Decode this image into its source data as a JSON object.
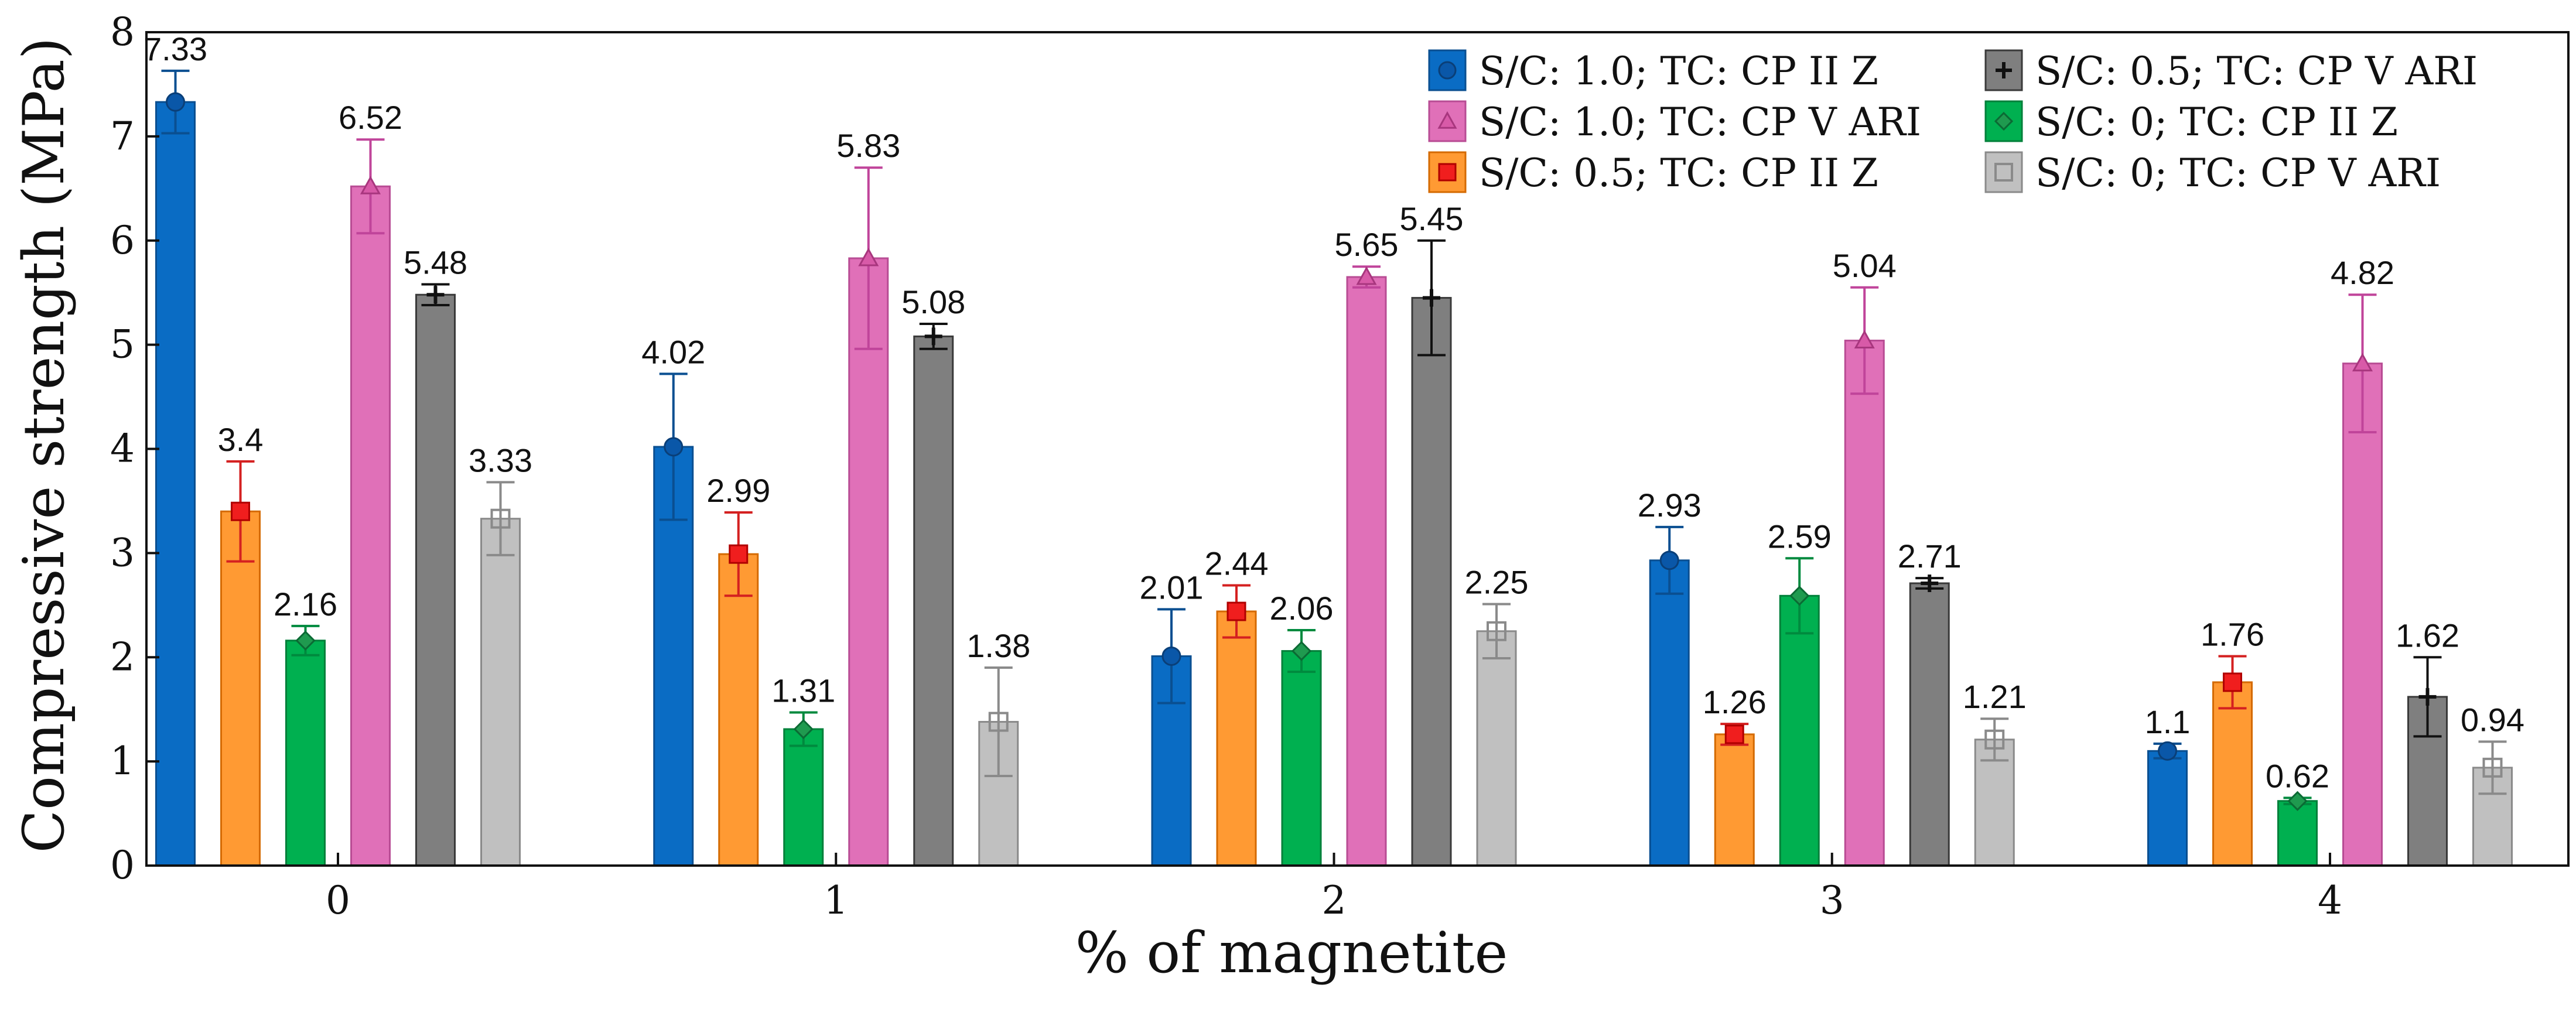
{
  "chart_data": {
    "type": "bar",
    "xlabel": "% of magnetite",
    "ylabel": "Compressive strength (MPa)",
    "ylim": [
      0,
      8
    ],
    "yticks": [
      "0",
      "1",
      "2",
      "3",
      "4",
      "5",
      "6",
      "7",
      "8"
    ],
    "categories": [
      "0",
      "1",
      "2",
      "3",
      "4"
    ],
    "legend_position": "top-right",
    "grid": false,
    "series": [
      {
        "name": "S/C: 1.0; TC: CP II Z",
        "fill": "#0a6cc4",
        "stroke": "#0a4f91",
        "error_color": "#0a4f91",
        "marker": "circle",
        "marker_color": "#0a57a8",
        "marker_stroke": "#0a3f78",
        "values": [
          7.33,
          4.02,
          2.01,
          2.93,
          1.1
        ],
        "labels": [
          "7.33",
          "4.02",
          "2.01",
          "2.93",
          "1.1"
        ],
        "errors": [
          0.3,
          0.7,
          0.45,
          0.32,
          0.07
        ]
      },
      {
        "name": "S/C: 0.5; TC: CP II Z",
        "fill": "#ff9a33",
        "stroke": "#d46a00",
        "error_color": "#d42020",
        "marker": "square",
        "marker_color": "#f01e1e",
        "marker_stroke": "#b00000",
        "values": [
          3.4,
          2.99,
          2.44,
          1.26,
          1.76
        ],
        "labels": [
          "3.4",
          "2.99",
          "2.44",
          "1.26",
          "1.76"
        ],
        "errors": [
          0.48,
          0.4,
          0.25,
          0.1,
          0.25
        ]
      },
      {
        "name": "S/C: 0; TC: CP II Z",
        "fill": "#00b050",
        "stroke": "#00803a",
        "error_color": "#008a3e",
        "marker": "diamond",
        "marker_color": "#1f9a4f",
        "marker_stroke": "#0b6a34",
        "values": [
          2.16,
          1.31,
          2.06,
          2.59,
          0.62
        ],
        "labels": [
          "2.16",
          "1.31",
          "2.06",
          "2.59",
          "0.62"
        ],
        "errors": [
          0.14,
          0.16,
          0.2,
          0.36,
          0.03
        ]
      },
      {
        "name": "S/C: 1.0; TC: CP V ARI",
        "fill": "#e070b8",
        "stroke": "#b84c94",
        "error_color": "#c0449a",
        "marker": "triangle",
        "marker_color": "#d85aa8",
        "marker_stroke": "#a8367e",
        "values": [
          6.52,
          5.83,
          5.65,
          5.04,
          4.82
        ],
        "labels": [
          "6.52",
          "5.83",
          "5.65",
          "5.04",
          "4.82"
        ],
        "errors": [
          0.45,
          0.87,
          0.1,
          0.51,
          0.66
        ]
      },
      {
        "name": "S/C: 0.5; TC: CP V ARI",
        "fill": "#7f7f7f",
        "stroke": "#3a3a3a",
        "error_color": "#111111",
        "marker": "plus",
        "marker_color": "#111111",
        "marker_stroke": "#111111",
        "values": [
          5.48,
          5.08,
          5.45,
          2.71,
          1.62
        ],
        "labels": [
          "5.48",
          "5.08",
          "5.45",
          "2.71",
          "1.62"
        ],
        "errors": [
          0.1,
          0.12,
          0.55,
          0.05,
          0.38
        ]
      },
      {
        "name": "S/C: 0; TC: CP V ARI",
        "fill": "#c0c0c0",
        "stroke": "#8a8a8a",
        "error_color": "#8a8a8a",
        "marker": "open-square",
        "marker_color": "#8a8a8a",
        "marker_stroke": "#8a8a8a",
        "values": [
          3.33,
          1.38,
          2.25,
          1.21,
          0.94
        ],
        "labels": [
          "3.33",
          "1.38",
          "2.25",
          "1.21",
          "0.94"
        ],
        "errors": [
          0.35,
          0.52,
          0.26,
          0.2,
          0.25
        ]
      }
    ],
    "legend_order": [
      0,
      3,
      1,
      4,
      2,
      5
    ]
  }
}
